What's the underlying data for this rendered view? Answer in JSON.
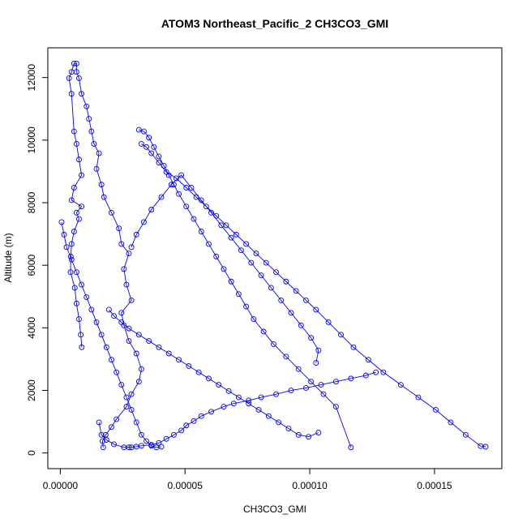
{
  "chart_data": {
    "type": "scatter",
    "title": "ATOM3 Northeast_Pacific_2 CH3CO3_GMI",
    "xlabel": "CH3CO3_GMI",
    "ylabel": "Altitude (m)",
    "xlim": [
      -5e-06,
      0.000177
    ],
    "ylim": [
      -500,
      12950
    ],
    "x_ticks": [
      {
        "value": 0.0,
        "label": "0.00000"
      },
      {
        "value": 5e-05,
        "label": "0.00005"
      },
      {
        "value": 0.0001,
        "label": "0.00010"
      },
      {
        "value": 0.00015,
        "label": "0.00015"
      }
    ],
    "y_ticks": [
      {
        "value": 0,
        "label": "0"
      },
      {
        "value": 2000,
        "label": "2000"
      },
      {
        "value": 4000,
        "label": "4000"
      },
      {
        "value": 6000,
        "label": "6000"
      },
      {
        "value": 8000,
        "label": "8000"
      },
      {
        "value": 10000,
        "label": "10000"
      },
      {
        "value": 12000,
        "label": "12000"
      }
    ],
    "series_color": "#0000ff",
    "marker": "open-circle",
    "connected": true,
    "series": [
      {
        "x": [
          1.72e-05,
          1.69e-05,
          1.82e-05,
          2.05e-05,
          2.25e-05,
          2.65e-05,
          2.85e-05,
          3.15e-05,
          3.25e-05,
          3.05e-05,
          2.75e-05,
          2.55e-05,
          2.45e-05,
          2.85e-05,
          2.65e-05,
          2.55e-05,
          2.75e-05,
          2.45e-05,
          2.35e-05,
          2.05e-05,
          1.75e-05,
          1.65e-05,
          1.45e-05,
          1.55e-05,
          1.35e-05,
          1.25e-05,
          1.15e-05,
          1.05e-05,
          8.5e-06,
          7.5e-06,
          6.5e-06,
          6.5e-06,
          5.5e-06,
          4.5e-06,
          3.5e-06,
          4.5e-06,
          5.5e-06,
          6.5e-06,
          7.5e-06,
          8.5e-06,
          5.5e-06,
          4.5e-06,
          8.5e-06,
          6.5e-06,
          7.5e-06,
          5.5e-06,
          4.5e-06,
          4.2e-06,
          4.1e-06,
          5.8e-06,
          6.5e-06,
          7.5e-06,
          8.2e-06,
          8.6e-06
        ],
        "y": [
          180,
          380,
          580,
          830,
          1080,
          1480,
          1880,
          2280,
          2680,
          3180,
          3580,
          4080,
          4480,
          4880,
          5380,
          5880,
          6380,
          6680,
          7180,
          7680,
          8180,
          8580,
          9080,
          9580,
          9880,
          10280,
          10680,
          11080,
          11480,
          11980,
          12180,
          12450,
          12450,
          12180,
          11980,
          11480,
          10280,
          9880,
          9380,
          8880,
          8480,
          8080,
          7880,
          7680,
          7480,
          7080,
          6680,
          6280,
          5780,
          5280,
          4780,
          4280,
          3780,
          3380
        ]
      },
      {
        "x": [
          1.55e-05,
          1.65e-05,
          1.85e-05,
          2.15e-05,
          2.55e-05,
          2.75e-05,
          2.85e-05,
          3.05e-05,
          3.25e-05,
          3.65e-05,
          3.95e-05,
          4.25e-05,
          4.55e-05,
          4.85e-05,
          5.05e-05,
          5.35e-05,
          5.65e-05,
          6.05e-05,
          6.55e-05,
          6.95e-05,
          7.55e-05,
          8.05e-05,
          8.65e-05,
          9.25e-05,
          9.85e-05,
          0.0001045,
          0.0001105,
          0.0001165,
          0.0001225,
          0.0001265
        ],
        "y": [
          980,
          580,
          420,
          280,
          180,
          180,
          180,
          200,
          230,
          260,
          320,
          450,
          580,
          720,
          880,
          1020,
          1180,
          1320,
          1480,
          1580,
          1680,
          1780,
          1880,
          2000,
          2080,
          2180,
          2280,
          2380,
          2480,
          2580
        ]
      },
      {
        "x": [
          5e-07,
          1.5e-06,
          2.5e-06,
          4.5e-06,
          6.5e-06,
          8.5e-06,
          1.05e-05,
          1.25e-05,
          1.45e-05,
          1.65e-05,
          1.85e-05,
          2.05e-05,
          2.25e-05,
          2.45e-05,
          2.65e-05,
          2.85e-05,
          3.05e-05,
          3.25e-05,
          3.45e-05,
          3.65e-05,
          3.85e-05,
          4.05e-05
        ],
        "y": [
          7380,
          6980,
          6580,
          6180,
          5780,
          5380,
          4980,
          4580,
          4180,
          3780,
          3380,
          2980,
          2580,
          2180,
          1780,
          1380,
          980,
          580,
          380,
          230,
          180,
          200
        ]
      },
      {
        "x": [
          3.25e-05,
          3.45e-05,
          3.65e-05,
          3.95e-05,
          4.25e-05,
          4.65e-05,
          5.05e-05,
          5.45e-05,
          5.85e-05,
          6.25e-05,
          6.65e-05,
          7.05e-05,
          7.45e-05,
          7.85e-05,
          8.25e-05,
          8.65e-05,
          9.05e-05,
          9.45e-05,
          9.85e-05,
          0.0001025,
          0.0001075,
          0.0001125,
          0.0001175,
          0.0001235,
          0.0001295,
          0.0001365,
          0.0001435,
          0.0001505,
          0.0001565,
          0.0001625,
          0.0001685,
          0.0001705
        ],
        "y": [
          9880,
          9780,
          9580,
          9280,
          8980,
          8780,
          8480,
          8180,
          7880,
          7580,
          7280,
          6980,
          6680,
          6380,
          6080,
          5780,
          5480,
          5180,
          4880,
          4580,
          4180,
          3780,
          3380,
          2980,
          2580,
          2180,
          1780,
          1380,
          980,
          580,
          220,
          200
        ]
      },
      {
        "x": [
          3.15e-05,
          3.35e-05,
          3.55e-05,
          3.75e-05,
          3.95e-05,
          4.15e-05,
          4.35e-05,
          4.55e-05,
          4.75e-05,
          5.05e-05,
          5.35e-05,
          5.65e-05,
          5.95e-05,
          6.25e-05,
          6.55e-05,
          6.85e-05,
          7.15e-05,
          7.45e-05,
          7.75e-05,
          8.15e-05,
          8.55e-05,
          9.05e-05,
          9.55e-05,
          0.0001005,
          0.0001055,
          0.0001105,
          0.0001165
        ],
        "y": [
          10330,
          10280,
          10080,
          9780,
          9480,
          9180,
          8880,
          8580,
          8280,
          7880,
          7480,
          7080,
          6680,
          6280,
          5880,
          5480,
          5080,
          4680,
          4280,
          3880,
          3480,
          3080,
          2680,
          2280,
          1880,
          1480,
          180
        ]
      },
      {
        "x": [
          2.85e-05,
          3.05e-05,
          3.35e-05,
          3.65e-05,
          4.05e-05,
          4.45e-05,
          4.85e-05,
          5.25e-05,
          5.65e-05,
          6.05e-05,
          6.45e-05,
          6.85e-05,
          7.25e-05,
          7.65e-05,
          8.05e-05,
          8.45e-05,
          8.85e-05,
          9.25e-05,
          9.65e-05,
          0.0001005,
          0.0001035,
          0.0001025
        ],
        "y": [
          6580,
          6980,
          7380,
          7780,
          8180,
          8580,
          8880,
          8480,
          8080,
          7680,
          7280,
          6880,
          6480,
          6080,
          5680,
          5280,
          4880,
          4480,
          4080,
          3680,
          3280,
          2880
        ]
      },
      {
        "x": [
          1.95e-05,
          2.15e-05,
          2.45e-05,
          2.75e-05,
          3.15e-05,
          3.55e-05,
          3.95e-05,
          4.35e-05,
          4.75e-05,
          5.15e-05,
          5.55e-05,
          5.95e-05,
          6.35e-05,
          6.75e-05,
          7.15e-05,
          7.55e-05,
          7.95e-05,
          8.35e-05,
          8.75e-05,
          9.15e-05,
          9.55e-05,
          9.95e-05,
          0.0001035
        ],
        "y": [
          4580,
          4380,
          4180,
          3980,
          3780,
          3580,
          3380,
          3180,
          2980,
          2780,
          2580,
          2380,
          2180,
          1980,
          1780,
          1580,
          1380,
          1180,
          980,
          780,
          580,
          520,
          650
        ]
      }
    ]
  }
}
